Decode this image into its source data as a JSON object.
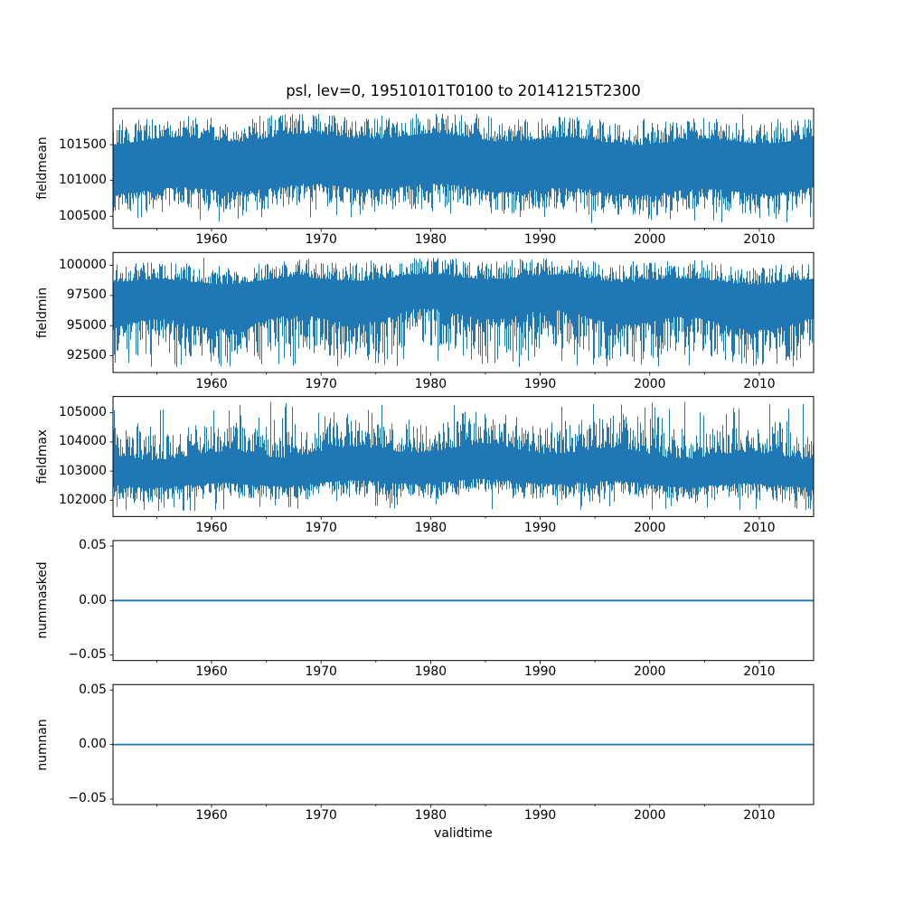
{
  "chart_data": {
    "type": "line",
    "title": "psl, lev=0, 19510101T0100 to 20141215T2300",
    "xlabel": "validtime",
    "grid": false,
    "legend": "none",
    "line_color": "#1f77b4",
    "x": {
      "lim": [
        1951.003,
        2014.954
      ],
      "major_ticks": [
        1960,
        1970,
        1980,
        1990,
        2000,
        2010
      ],
      "major_tick_labels": [
        "1960",
        "1970",
        "1980",
        "1990",
        "2000",
        "2010"
      ],
      "minor_ticks": [
        1955,
        1965,
        1975,
        1985,
        1995,
        2005,
        2015
      ]
    },
    "subplots": [
      {
        "ylabel": "fieldmean",
        "ylim": [
          100330,
          102005
        ],
        "ytick_values": [
          100500,
          101000,
          101500
        ],
        "ytick_labels": [
          "100500",
          "101000",
          "101500"
        ],
        "series": {
          "name": "fieldmean",
          "color": "#1f77b4",
          "render": "noisy-band",
          "stats": {
            "min": 100406,
            "max": 101929,
            "core_top": 101580,
            "core_bottom": 100880,
            "edge_var_top": 250,
            "edge_var_bottom": 250,
            "spike_up_prob": 0.15,
            "spike_down_prob": 0.15,
            "max_year": 1984.2,
            "min_year": 1994.7
          }
        }
      },
      {
        "ylabel": "fieldmin",
        "ylim": [
          91110,
          101065
        ],
        "ytick_values": [
          92500,
          95000,
          97500,
          100000
        ],
        "ytick_labels": [
          "92500",
          "95000",
          "97500",
          "100000"
        ],
        "series": {
          "name": "fieldmin",
          "color": "#1f77b4",
          "render": "noisy-band",
          "stats": {
            "min": 91562,
            "max": 100613,
            "core_top": 98850,
            "core_bottom": 95550,
            "edge_var_top": 1250,
            "edge_var_bottom": 2600,
            "spike_up_prob": 0.1,
            "spike_down_prob": 0.35,
            "max_year": 1959.3,
            "min_year": 1988.1
          }
        }
      },
      {
        "ylabel": "fieldmax",
        "ylim": [
          101440,
          105560
        ],
        "ytick_values": [
          102000,
          103000,
          104000,
          105000
        ],
        "ytick_labels": [
          "102000",
          "103000",
          "104000",
          "105000"
        ],
        "series": {
          "name": "fieldmax",
          "color": "#1f77b4",
          "render": "noisy-band",
          "stats": {
            "min": 101627,
            "max": 105373,
            "core_top": 103650,
            "core_bottom": 102580,
            "edge_var_top": 780,
            "edge_var_bottom": 430,
            "spike_up_prob": 0.35,
            "spike_down_prob": 0.2,
            "max_year": 2003.2,
            "min_year": 1958.4
          }
        }
      },
      {
        "ylabel": "nummasked",
        "ylim": [
          -0.055,
          0.055
        ],
        "ytick_values": [
          -0.05,
          0,
          0.05
        ],
        "ytick_labels": [
          "−0.05",
          "0.00",
          "0.05"
        ],
        "series": {
          "name": "nummasked",
          "color": "#1f77b4",
          "render": "constant",
          "value": 0
        }
      },
      {
        "ylabel": "numnan",
        "ylim": [
          -0.055,
          0.055
        ],
        "ytick_values": [
          -0.05,
          0,
          0.05
        ],
        "ytick_labels": [
          "−0.05",
          "0.00",
          "0.05"
        ],
        "series": {
          "name": "numnan",
          "color": "#1f77b4",
          "render": "constant",
          "value": 0
        }
      }
    ]
  }
}
